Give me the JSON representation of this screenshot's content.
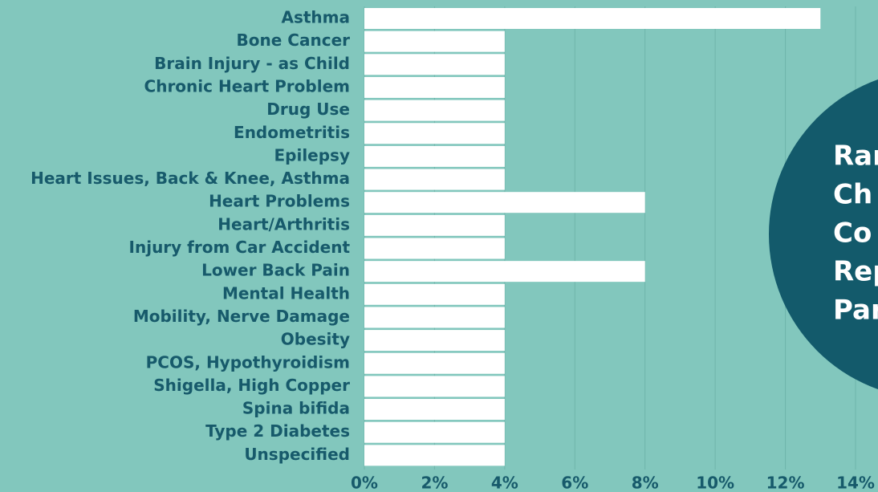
{
  "chart_data": {
    "type": "bar",
    "orientation": "horizontal",
    "categories": [
      "Asthma",
      "Bone Cancer",
      "Brain Injury - as Child",
      "Chronic Heart Problem",
      "Drug Use",
      "Endometritis",
      "Epilepsy",
      "Heart Issues, Back & Knee, Asthma",
      "Heart Problems",
      "Heart/Arthritis",
      "Injury from Car Accident",
      "Lower Back Pain",
      "Mental Health",
      "Mobility, Nerve Damage",
      "Obesity",
      "PCOS, Hypothyroidism",
      "Shigella, High Copper",
      "Spina bifida",
      "Type 2 Diabetes",
      "Unspecified"
    ],
    "values": [
      13,
      4,
      4,
      4,
      4,
      4,
      4,
      4,
      8,
      4,
      4,
      8,
      4,
      4,
      4,
      4,
      4,
      4,
      4,
      4
    ],
    "color": "#ffffff",
    "xlim": [
      0,
      14
    ],
    "xticks": [
      {
        "value": 0,
        "label": "0%"
      },
      {
        "value": 2,
        "label": "2%"
      },
      {
        "value": 4,
        "label": "4%"
      },
      {
        "value": 6,
        "label": "6%"
      },
      {
        "value": 8,
        "label": "8%"
      },
      {
        "value": 10,
        "label": "10%"
      },
      {
        "value": 12,
        "label": "12%"
      },
      {
        "value": 14,
        "label": "14%"
      }
    ],
    "grid": true
  },
  "callout": {
    "lines": [
      "Ran",
      "Ch",
      "Co",
      "Rep",
      "Par"
    ]
  }
}
